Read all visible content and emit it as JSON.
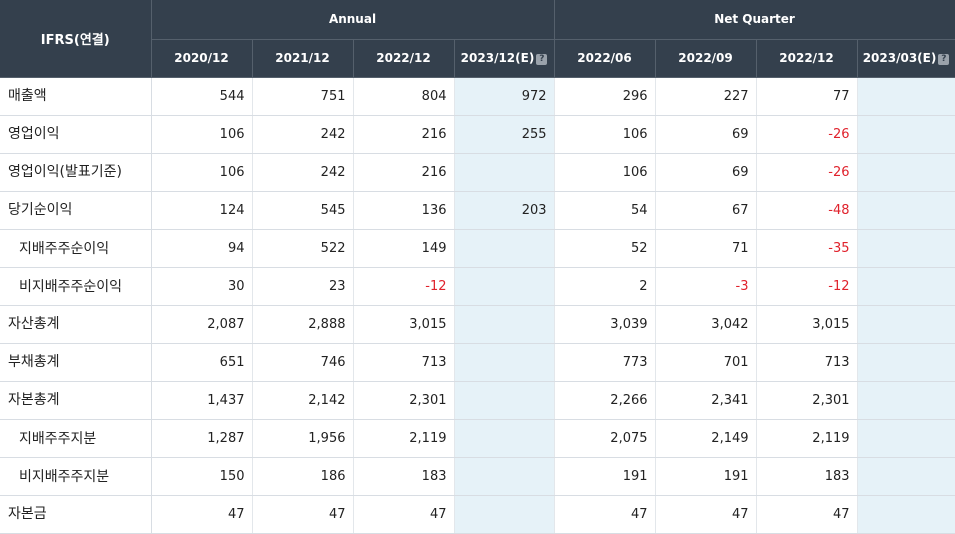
{
  "header": {
    "corner": "IFRS(연결)",
    "annual_label": "Annual",
    "quarter_label": "Net Quarter",
    "annual_cols": [
      "2020/12",
      "2021/12",
      "2022/12",
      "2023/12(E)"
    ],
    "quarter_cols": [
      "2022/06",
      "2022/09",
      "2022/12",
      "2023/03(E)"
    ],
    "help_glyph": "?"
  },
  "rows": [
    {
      "label": "매출액",
      "values": [
        "544",
        "751",
        "804",
        "972",
        "296",
        "227",
        "77",
        ""
      ]
    },
    {
      "label": "영업이익",
      "values": [
        "106",
        "242",
        "216",
        "255",
        "106",
        "69",
        "-26",
        ""
      ]
    },
    {
      "label": "영업이익(발표기준)",
      "values": [
        "106",
        "242",
        "216",
        "",
        "106",
        "69",
        "-26",
        ""
      ]
    },
    {
      "label": "당기순이익",
      "values": [
        "124",
        "545",
        "136",
        "203",
        "54",
        "67",
        "-48",
        ""
      ]
    },
    {
      "label": "지배주주순이익",
      "values": [
        "94",
        "522",
        "149",
        "",
        "52",
        "71",
        "-35",
        ""
      ]
    },
    {
      "label": "비지배주주순이익",
      "values": [
        "30",
        "23",
        "-12",
        "",
        "2",
        "-3",
        "-12",
        ""
      ]
    },
    {
      "label": "자산총계",
      "values": [
        "2,087",
        "2,888",
        "3,015",
        "",
        "3,039",
        "3,042",
        "3,015",
        ""
      ]
    },
    {
      "label": "부채총계",
      "values": [
        "651",
        "746",
        "713",
        "",
        "773",
        "701",
        "713",
        ""
      ]
    },
    {
      "label": "자본총계",
      "values": [
        "1,437",
        "2,142",
        "2,301",
        "",
        "2,266",
        "2,341",
        "2,301",
        ""
      ]
    },
    {
      "label": "지배주주지분",
      "values": [
        "1,287",
        "1,956",
        "2,119",
        "",
        "2,075",
        "2,149",
        "2,119",
        ""
      ]
    },
    {
      "label": "비지배주주지분",
      "values": [
        "150",
        "186",
        "183",
        "",
        "191",
        "191",
        "183",
        ""
      ]
    },
    {
      "label": "자본금",
      "values": [
        "47",
        "47",
        "47",
        "",
        "47",
        "47",
        "47",
        ""
      ]
    }
  ],
  "colors": {
    "header_bg": "#34404d",
    "estimate_bg": "#e6f2f8",
    "negative": "#e0222c"
  }
}
